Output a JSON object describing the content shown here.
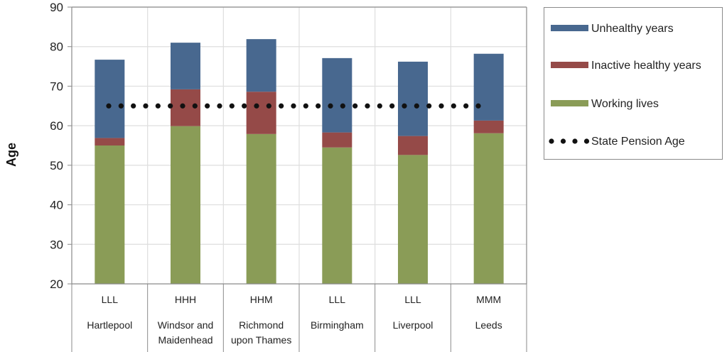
{
  "chart_data": {
    "type": "bar",
    "stacked": true,
    "title": "",
    "xlabel": "",
    "ylabel": "Age",
    "ylim": [
      20,
      90
    ],
    "yticks": [
      20,
      30,
      40,
      50,
      60,
      70,
      80,
      90
    ],
    "grid": true,
    "legend_position": "right",
    "categories": [
      {
        "code": "LLL",
        "name": [
          "Hartlepool"
        ]
      },
      {
        "code": "HHH",
        "name": [
          "Windsor and",
          "Maidenhead"
        ]
      },
      {
        "code": "HHM",
        "name": [
          "Richmond",
          "upon Thames"
        ]
      },
      {
        "code": "LLL",
        "name": [
          "Birmingham"
        ]
      },
      {
        "code": "LLL",
        "name": [
          "Liverpool"
        ]
      },
      {
        "code": "MMM",
        "name": [
          "Leeds"
        ]
      }
    ],
    "series": [
      {
        "name": "Working lives",
        "color": "#8a9c57",
        "values": [
          55.0,
          59.9,
          57.9,
          54.5,
          52.6,
          58.1
        ]
      },
      {
        "name": "Inactive healthy years",
        "color": "#954a48",
        "values": [
          1.9,
          9.3,
          10.7,
          3.8,
          4.8,
          3.2
        ]
      },
      {
        "name": "Unhealthy years",
        "color": "#48688f",
        "values": [
          19.8,
          11.8,
          13.3,
          18.8,
          18.8,
          16.9
        ]
      }
    ],
    "reference_line": {
      "name": "State Pension Age",
      "value": 65,
      "style": "dotted",
      "color": "#111111"
    },
    "legend": [
      {
        "label": "Unhealthy years",
        "color": "#48688f",
        "kind": "bar"
      },
      {
        "label": "Inactive healthy years",
        "color": "#954a48",
        "kind": "bar"
      },
      {
        "label": "Working lives",
        "color": "#8a9c57",
        "kind": "bar"
      },
      {
        "label": "State Pension Age",
        "color": "#111111",
        "kind": "dots"
      }
    ]
  }
}
